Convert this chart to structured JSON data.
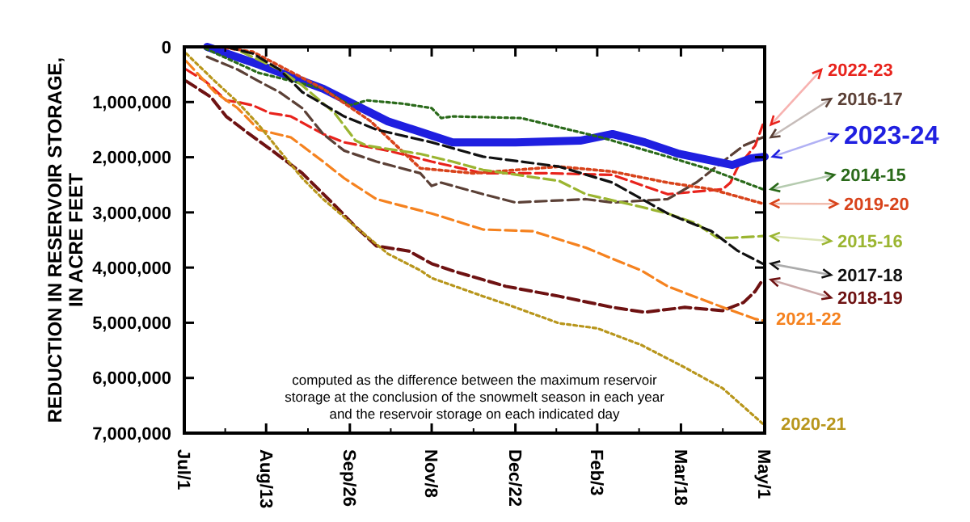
{
  "chart_data": {
    "type": "line",
    "ylabel": "REDUCTION IN RESERVOIR STORAGE,\nIN ACRE FEET",
    "xlim": [
      "2023-07-01",
      "2024-05-01"
    ],
    "ylim": [
      7000000,
      0
    ],
    "xticks": [
      {
        "value": "2023-07-01",
        "label": "Jul/1"
      },
      {
        "value": "2023-08-13",
        "label": "Aug/13"
      },
      {
        "value": "2023-09-26",
        "label": "Sep/26"
      },
      {
        "value": "2023-11-08",
        "label": "Nov/8"
      },
      {
        "value": "2023-12-22",
        "label": "Dec/22"
      },
      {
        "value": "2024-02-03",
        "label": "Feb/3"
      },
      {
        "value": "2024-03-18",
        "label": "Mar/18"
      },
      {
        "value": "2024-05-01",
        "label": "May/1"
      }
    ],
    "yticks": [
      0,
      {
        "value": 1000000,
        "label": "1,000,000"
      },
      {
        "value": 2000000,
        "label": "2,000,000"
      },
      {
        "value": 3000000,
        "label": "3,000,000"
      },
      {
        "value": 4000000,
        "label": "4,000,000"
      },
      {
        "value": 5000000,
        "label": "5,000,000"
      },
      {
        "value": 6000000,
        "label": "6,000,000"
      },
      {
        "value": 7000000,
        "label": "7,000,000"
      }
    ],
    "grid": false,
    "legend": "right",
    "annotations": [
      "computed as the difference between the maximum reservoir\nstorage at the conclusion of the snowmelt season in each year\nand the reservoir storage on each indicated day"
    ],
    "series": [
      {
        "name": "2022-23",
        "color": "#e8231c",
        "line_style": "dashed",
        "x": [
          "2023-07-02",
          "2023-07-12",
          "2023-07-23",
          "2023-07-29",
          "2023-08-06",
          "2023-08-15",
          "2023-08-26",
          "2023-09-12",
          "2023-09-23",
          "2023-10-16",
          "2023-11-08",
          "2023-12-05",
          "2024-01-08",
          "2024-02-11",
          "2024-03-11",
          "2024-04-09",
          "2024-04-13",
          "2024-04-17",
          "2024-04-26",
          "2024-04-30"
        ],
        "values": [
          410000,
          620000,
          970000,
          1000000,
          1060000,
          1200000,
          1260000,
          1580000,
          1730000,
          1880000,
          2080000,
          2290000,
          2290000,
          2320000,
          2670000,
          2580000,
          2460000,
          2170000,
          1790000,
          1410000
        ]
      },
      {
        "name": "2016-17",
        "color": "#5b4036",
        "line_style": "dashed",
        "x": [
          "2023-07-13",
          "2023-07-29",
          "2023-08-09",
          "2023-08-20",
          "2023-09-01",
          "2023-09-12",
          "2023-09-23",
          "2023-10-10",
          "2023-11-02",
          "2023-11-08",
          "2023-11-13",
          "2023-12-05",
          "2023-12-22",
          "2024-01-28",
          "2024-02-11",
          "2024-03-11",
          "2024-03-26",
          "2024-04-09",
          "2024-04-20",
          "2024-04-30"
        ],
        "values": [
          180000,
          410000,
          620000,
          820000,
          1110000,
          1580000,
          1880000,
          2080000,
          2290000,
          2520000,
          2460000,
          2670000,
          2820000,
          2760000,
          2820000,
          2760000,
          2460000,
          2080000,
          1790000,
          1640000
        ]
      },
      {
        "name": "2023-24",
        "color": "#1f1fe0",
        "line_style": "solid",
        "x": [
          "2023-07-13",
          "2023-08-09",
          "2023-09-12",
          "2023-10-16",
          "2023-11-19",
          "2023-12-22",
          "2024-01-25",
          "2024-02-11",
          "2024-02-28",
          "2024-03-17",
          "2024-04-14",
          "2024-04-24",
          "2024-05-01"
        ],
        "values": [
          0,
          320000,
          760000,
          1350000,
          1730000,
          1730000,
          1700000,
          1580000,
          1730000,
          1940000,
          2140000,
          2020000,
          1990000
        ]
      },
      {
        "name": "2014-15",
        "color": "#2a6a1a",
        "line_style": "dotted",
        "x": [
          "2023-07-12",
          "2023-08-09",
          "2023-09-12",
          "2023-09-26",
          "2023-10-05",
          "2023-10-24",
          "2023-11-08",
          "2023-11-13",
          "2023-11-19",
          "2023-12-25",
          "2024-02-05",
          "2024-03-11",
          "2024-04-03",
          "2024-04-30"
        ],
        "values": [
          30000,
          470000,
          760000,
          1060000,
          970000,
          1030000,
          1110000,
          1290000,
          1260000,
          1290000,
          1640000,
          1990000,
          2230000,
          2580000
        ]
      },
      {
        "name": "2019-20",
        "color": "#d8431b",
        "line_style": "dotted",
        "x": [
          "2023-07-19",
          "2023-08-06",
          "2023-09-12",
          "2023-10-07",
          "2023-11-02",
          "2023-11-30",
          "2024-01-14",
          "2024-02-11",
          "2024-03-11",
          "2024-04-03",
          "2024-04-30"
        ],
        "values": [
          0,
          90000,
          760000,
          1350000,
          2200000,
          2290000,
          2170000,
          2260000,
          2460000,
          2580000,
          2840000
        ]
      },
      {
        "name": "2015-16",
        "color": "#9bb531",
        "line_style": "dashed",
        "x": [
          "2023-07-31",
          "2023-08-20",
          "2023-09-01",
          "2023-09-18",
          "2023-09-29",
          "2023-10-05",
          "2023-10-16",
          "2023-11-02",
          "2023-11-19",
          "2023-12-05",
          "2024-01-14",
          "2024-01-28",
          "2024-02-26",
          "2024-03-11",
          "2024-03-26",
          "2024-04-06",
          "2024-04-14",
          "2024-04-30"
        ],
        "values": [
          90000,
          410000,
          700000,
          1200000,
          1700000,
          1790000,
          1850000,
          1940000,
          2080000,
          2230000,
          2430000,
          2670000,
          2900000,
          3020000,
          3200000,
          3460000,
          3460000,
          3430000
        ]
      },
      {
        "name": "2017-18",
        "color": "#111111",
        "line_style": "dashed",
        "x": [
          "2023-07-23",
          "2023-08-06",
          "2023-08-20",
          "2023-09-01",
          "2023-09-23",
          "2023-10-10",
          "2023-11-08",
          "2023-12-05",
          "2024-01-14",
          "2024-02-11",
          "2024-03-11",
          "2024-04-03",
          "2024-04-17",
          "2024-04-30"
        ],
        "values": [
          0,
          120000,
          410000,
          820000,
          1260000,
          1500000,
          1730000,
          1990000,
          2170000,
          2460000,
          3020000,
          3340000,
          3700000,
          3930000
        ]
      },
      {
        "name": "2018-19",
        "color": "#6e1212",
        "line_style": "dashed",
        "x": [
          "2023-07-02",
          "2023-07-15",
          "2023-07-23",
          "2023-08-03",
          "2023-08-15",
          "2023-09-01",
          "2023-09-18",
          "2023-09-29",
          "2023-10-10",
          "2023-10-27",
          "2023-11-08",
          "2023-11-21",
          "2023-12-05",
          "2023-12-17",
          "2024-01-14",
          "2024-02-11",
          "2024-02-28",
          "2024-03-20",
          "2024-04-09",
          "2024-04-20",
          "2024-04-26",
          "2024-04-30"
        ],
        "values": [
          620000,
          910000,
          1260000,
          1550000,
          1850000,
          2290000,
          2870000,
          3260000,
          3610000,
          3700000,
          3930000,
          4080000,
          4220000,
          4340000,
          4520000,
          4720000,
          4810000,
          4720000,
          4780000,
          4630000,
          4430000,
          4220000
        ]
      },
      {
        "name": "2021-22",
        "color": "#f5821f",
        "line_style": "dashed",
        "x": [
          "2023-07-02",
          "2023-07-17",
          "2023-07-29",
          "2023-08-09",
          "2023-08-15",
          "2023-08-26",
          "2023-09-12",
          "2023-09-23",
          "2023-10-10",
          "2023-11-08",
          "2023-12-05",
          "2023-12-31",
          "2024-01-28",
          "2024-02-11",
          "2024-02-26",
          "2024-03-11",
          "2024-04-09",
          "2024-04-26",
          "2024-04-30"
        ],
        "values": [
          260000,
          820000,
          1110000,
          1500000,
          1550000,
          1640000,
          2080000,
          2380000,
          2760000,
          3020000,
          3310000,
          3340000,
          3640000,
          3840000,
          4050000,
          4340000,
          4720000,
          4930000,
          4960000
        ]
      },
      {
        "name": "2020-21",
        "color": "#b8961c",
        "line_style": "dotted",
        "x": [
          "2023-07-02",
          "2023-07-17",
          "2023-07-29",
          "2023-08-09",
          "2023-08-20",
          "2023-09-01",
          "2023-09-12",
          "2023-09-29",
          "2023-10-16",
          "2023-11-02",
          "2023-11-08",
          "2023-12-05",
          "2023-12-17",
          "2024-01-14",
          "2024-02-03",
          "2024-02-26",
          "2024-03-20",
          "2024-04-09",
          "2024-04-30"
        ],
        "values": [
          120000,
          620000,
          1000000,
          1410000,
          1880000,
          2380000,
          2760000,
          3260000,
          3750000,
          4050000,
          4190000,
          4520000,
          4660000,
          5010000,
          5100000,
          5400000,
          5810000,
          6190000,
          6830000
        ]
      }
    ]
  }
}
